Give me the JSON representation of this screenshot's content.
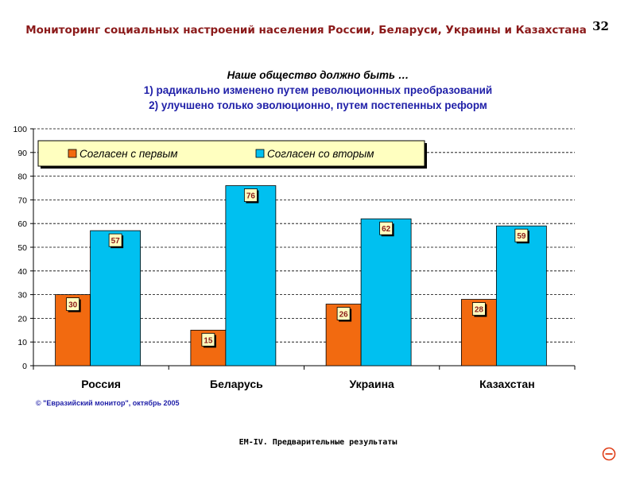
{
  "header": {
    "title": "Мониторинг социальных настроений населения России, Беларуси, Украины и Казахстана",
    "page_number": "32"
  },
  "question": {
    "line1": "Наше общество должно быть …",
    "line2": "1) радикально изменено путем революционных преобразований",
    "line3": "2) улучшено только эволюционно, путем постепенных реформ"
  },
  "chart_data": {
    "type": "bar",
    "categories": [
      "Россия",
      "Беларусь",
      "Украина",
      "Казахстан"
    ],
    "series": [
      {
        "name": "Согласен с первым",
        "values": [
          30,
          15,
          26,
          28
        ],
        "color": "#f26a10"
      },
      {
        "name": "Согласен со вторым",
        "values": [
          57,
          76,
          62,
          59
        ],
        "color": "#00c0f0"
      }
    ],
    "ylim": [
      0,
      100
    ],
    "yticks": [
      0,
      10,
      20,
      30,
      40,
      50,
      60,
      70,
      80,
      90,
      100
    ],
    "grid": true,
    "legend_position": "top-left"
  },
  "copyright": "© \"Евразийский монитор\", октябрь 2005",
  "footer": "EM-IV. Предварительные результаты",
  "colors": {
    "title": "#8b1a1a",
    "question": "#1f1fa8",
    "label_text": "#8b1a1a",
    "label_fill": "#ffffc0"
  },
  "icons": {
    "corner": "minus-circle-icon"
  }
}
